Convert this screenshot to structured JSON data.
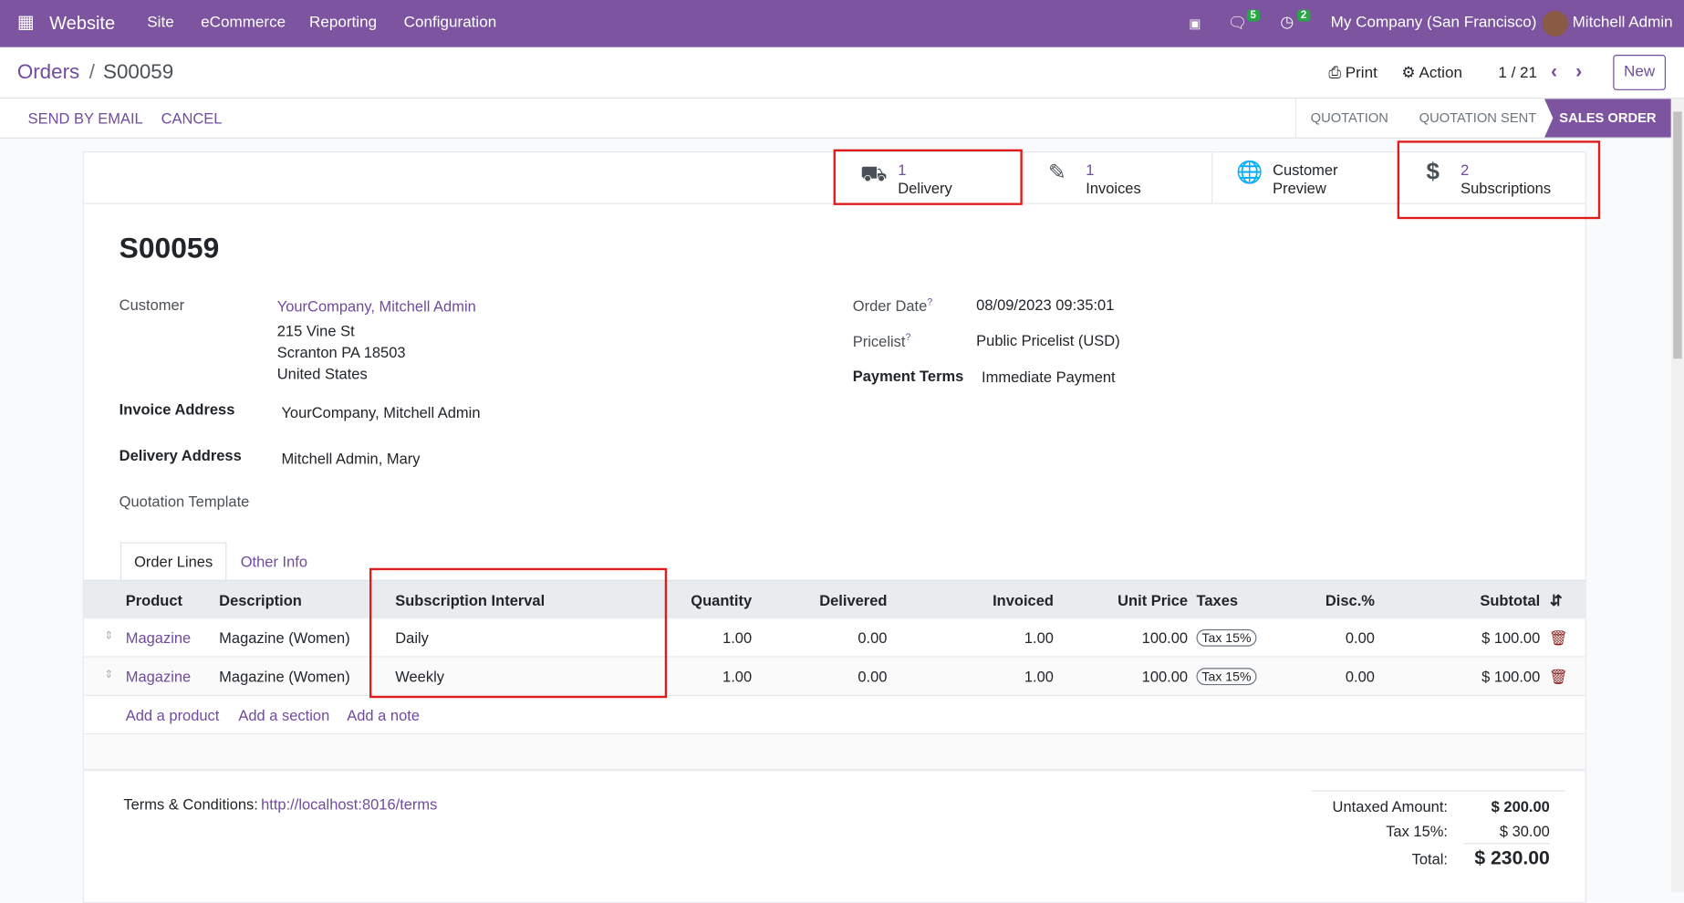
{
  "navbar": {
    "app": "Website",
    "menus": [
      "Site",
      "eCommerce",
      "Reporting",
      "Configuration"
    ],
    "messages_count": "5",
    "activities_count": "2",
    "company": "My Company (San Francisco)",
    "user": "Mitchell Admin",
    "color": "#7c54a0"
  },
  "control_panel": {
    "breadcrumb_parent": "Orders",
    "breadcrumb_current": "S00059",
    "print": "Print",
    "action": "Action",
    "pager": "1 / 21",
    "new": "New"
  },
  "status_bar": {
    "send_by_email": "SEND BY EMAIL",
    "cancel": "CANCEL",
    "stages": [
      "QUOTATION",
      "QUOTATION SENT",
      "SALES ORDER"
    ],
    "active_stage": "SALES ORDER"
  },
  "smart_buttons": [
    {
      "icon": "truck-icon",
      "count": "1",
      "label": "Delivery"
    },
    {
      "icon": "pencil-square-icon",
      "count": "1",
      "label": "Invoices"
    },
    {
      "icon": "globe-icon",
      "count": "Customer",
      "label": "Preview"
    },
    {
      "icon": "dollar-icon",
      "count": "2",
      "label": "Subscriptions"
    }
  ],
  "form": {
    "title": "S00059",
    "customer_label": "Customer",
    "customer": "YourCompany, Mitchell Admin",
    "address": [
      "215 Vine St",
      "Scranton PA 18503",
      "United States"
    ],
    "invoice_address_label": "Invoice Address",
    "invoice_address": "YourCompany, Mitchell Admin",
    "delivery_address_label": "Delivery Address",
    "delivery_address": "Mitchell Admin, Mary",
    "quotation_template_label": "Quotation Template",
    "order_date_label": "Order Date",
    "order_date": "08/09/2023 09:35:01",
    "pricelist_label": "Pricelist",
    "pricelist": "Public Pricelist (USD)",
    "payment_terms_label": "Payment Terms",
    "payment_terms": "Immediate Payment",
    "help_mark": "?"
  },
  "tabs": [
    "Order Lines",
    "Other Info"
  ],
  "table": {
    "headers": [
      "Product",
      "Description",
      "Subscription Interval",
      "Quantity",
      "Delivered",
      "Invoiced",
      "Unit Price",
      "Taxes",
      "Disc.%",
      "Subtotal"
    ],
    "rows": [
      [
        "Magazine",
        "Magazine (Women)",
        "Daily",
        "1.00",
        "0.00",
        "1.00",
        "100.00",
        "Tax 15%",
        "0.00",
        "$ 100.00"
      ],
      [
        "Magazine",
        "Magazine (Women)",
        "Weekly",
        "1.00",
        "0.00",
        "1.00",
        "100.00",
        "Tax 15%",
        "0.00",
        "$ 100.00"
      ]
    ],
    "add_product": "Add a product",
    "add_section": "Add a section",
    "add_note": "Add a note"
  },
  "footer": {
    "terms_label": "Terms & Conditions:",
    "terms_link": "http://localhost:8016/terms",
    "untaxed_label": "Untaxed Amount:",
    "untaxed": "$ 200.00",
    "tax_label": "Tax 15%:",
    "tax": "$ 30.00",
    "total_label": "Total:",
    "total": "$ 230.00"
  }
}
